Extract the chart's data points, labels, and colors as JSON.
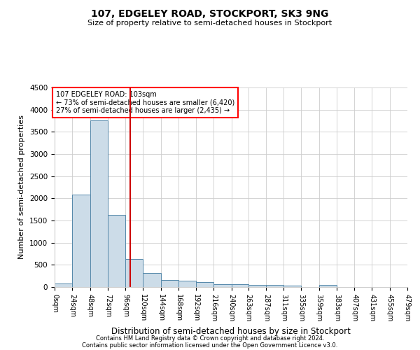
{
  "title1": "107, EDGELEY ROAD, STOCKPORT, SK3 9NG",
  "title2": "Size of property relative to semi-detached houses in Stockport",
  "xlabel": "Distribution of semi-detached houses by size in Stockport",
  "ylabel": "Number of semi-detached properties",
  "footer1": "Contains HM Land Registry data © Crown copyright and database right 2024.",
  "footer2": "Contains public sector information licensed under the Open Government Licence v3.0.",
  "annotation_title": "107 EDGELEY ROAD: 103sqm",
  "annotation_line1": "← 73% of semi-detached houses are smaller (6,420)",
  "annotation_line2": "27% of semi-detached houses are larger (2,435) →",
  "property_size": 103,
  "bin_edges": [
    0,
    24,
    48,
    72,
    96,
    120,
    144,
    168,
    192,
    216,
    240,
    263,
    287,
    311,
    335,
    359,
    383,
    407,
    431,
    455,
    479
  ],
  "bar_heights": [
    85,
    2080,
    3760,
    1620,
    630,
    310,
    155,
    145,
    105,
    70,
    60,
    45,
    40,
    35,
    5,
    55,
    5,
    5,
    5,
    5
  ],
  "bar_color": "#ccdce8",
  "bar_edge_color": "#5588aa",
  "vline_color": "#cc0000",
  "grid_color": "#cccccc",
  "background_color": "#ffffff",
  "ylim": [
    0,
    4500
  ],
  "yticks": [
    0,
    500,
    1000,
    1500,
    2000,
    2500,
    3000,
    3500,
    4000,
    4500
  ]
}
